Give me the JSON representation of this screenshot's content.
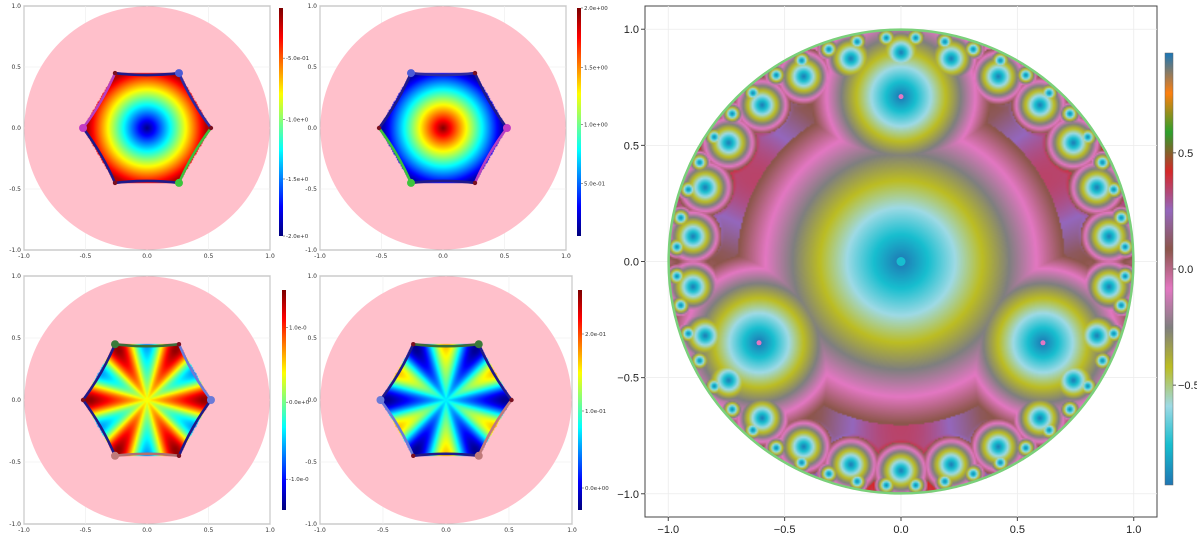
{
  "chart_data": [
    {
      "type": "heatmap",
      "id": "p1",
      "colormap": "jet",
      "xlim": [
        -1.0,
        1.0
      ],
      "ylim": [
        -1.0,
        1.0
      ],
      "x_ticks": [
        "-1.0",
        "-0.5",
        "0.0",
        "0.5",
        "1.0"
      ],
      "y_ticks": [
        "-1.0",
        "-0.5",
        "0.0",
        "0.5",
        "1.0"
      ],
      "disk_color": "#ffc0cb",
      "field": "radial_low",
      "colorbar_ticks": [
        {
          "label": "-5.0e-01",
          "pos": 0.78
        },
        {
          "label": "-1.0e+0",
          "pos": 0.51
        },
        {
          "label": "-1.5e+0",
          "pos": 0.25
        },
        {
          "label": "-2.0e+0",
          "pos": 0.0
        }
      ],
      "hexagon_vertices": [
        [
          0.52,
          0.0
        ],
        [
          0.26,
          0.45
        ],
        [
          -0.26,
          0.45
        ],
        [
          -0.52,
          0.0
        ],
        [
          -0.26,
          -0.45
        ],
        [
          0.26,
          -0.45
        ]
      ],
      "edge_colors": [
        "#2e2aa0",
        "#1f1a8a",
        "#b83fc0",
        "#1f1a8a",
        "#1f1a8a",
        "#3cbf3c"
      ],
      "markers": [
        {
          "x": 0.26,
          "y": 0.45,
          "color": "#4b5bd6"
        },
        {
          "x": -0.52,
          "y": 0.0,
          "color": "#c43cc4"
        },
        {
          "x": 0.26,
          "y": -0.45,
          "color": "#3cc43c"
        }
      ]
    },
    {
      "type": "heatmap",
      "id": "p2",
      "colormap": "jet",
      "xlim": [
        -1.0,
        1.0
      ],
      "ylim": [
        -1.0,
        1.0
      ],
      "x_ticks": [
        "-1.0",
        "-0.5",
        "0.0",
        "0.5",
        "1.0"
      ],
      "y_ticks": [
        "-1.0",
        "-0.5",
        "0.0",
        "0.5",
        "1.0"
      ],
      "disk_color": "#ffc0cb",
      "field": "radial_high",
      "colorbar_ticks": [
        {
          "label": "2.0e+00",
          "pos": 1.0
        },
        {
          "label": "1.5e+00",
          "pos": 0.74
        },
        {
          "label": "1.0e+00",
          "pos": 0.49
        },
        {
          "label": "5.0e-01",
          "pos": 0.23
        }
      ],
      "hexagon_vertices": [
        [
          0.52,
          0.0
        ],
        [
          0.26,
          0.45
        ],
        [
          -0.26,
          0.45
        ],
        [
          -0.52,
          0.0
        ],
        [
          -0.26,
          -0.45
        ],
        [
          0.26,
          -0.45
        ]
      ],
      "edge_colors": [
        "#1f1a8a",
        "#2e2aa0",
        "#1f1a8a",
        "#3cbf3c",
        "#1f1a8a",
        "#b83fc0"
      ],
      "markers": [
        {
          "x": -0.26,
          "y": 0.45,
          "color": "#4b5bd6"
        },
        {
          "x": 0.52,
          "y": 0.0,
          "color": "#c43cc4"
        },
        {
          "x": -0.26,
          "y": -0.45,
          "color": "#3cc43c"
        }
      ]
    },
    {
      "type": "heatmap",
      "id": "p3",
      "colormap": "jet",
      "xlim": [
        -1.0,
        1.0
      ],
      "ylim": [
        -1.0,
        1.0
      ],
      "x_ticks": [
        "-1.0",
        "-0.5",
        "0.0",
        "0.5",
        "1.0"
      ],
      "y_ticks": [
        "-1.0",
        "-0.5",
        "0.0",
        "0.5",
        "1.0"
      ],
      "disk_color": "#ffc0cb",
      "field": "star",
      "colorbar_ticks": [
        {
          "label": "1.0e-0",
          "pos": 0.83
        },
        {
          "label": "0.0e+0",
          "pos": 0.49
        },
        {
          "label": "-1.0e-0",
          "pos": 0.14
        }
      ],
      "hexagon_vertices": [
        [
          0.52,
          0.0
        ],
        [
          0.26,
          0.45
        ],
        [
          -0.26,
          0.45
        ],
        [
          -0.52,
          0.0
        ],
        [
          -0.26,
          -0.45
        ],
        [
          0.26,
          -0.45
        ]
      ],
      "edge_colors": [
        "#6a7ad8",
        "#3a6e3a",
        "#1f1a8a",
        "#1f1a8a",
        "#b07070",
        "#1f1a8a"
      ],
      "markers": [
        {
          "x": -0.26,
          "y": 0.45,
          "color": "#3a7a3a"
        },
        {
          "x": 0.52,
          "y": 0.0,
          "color": "#6a7ad8"
        },
        {
          "x": -0.26,
          "y": -0.45,
          "color": "#c07a7a"
        }
      ]
    },
    {
      "type": "heatmap",
      "id": "p4",
      "colormap": "jet",
      "xlim": [
        -1.0,
        1.0
      ],
      "ylim": [
        -1.0,
        1.0
      ],
      "x_ticks": [
        "-1.0",
        "-0.5",
        "0.0",
        "0.5",
        "1.0"
      ],
      "y_ticks": [
        "-1.0",
        "-0.5",
        "0.0",
        "0.5",
        "1.0"
      ],
      "disk_color": "#ffc0cb",
      "field": "star_mid",
      "colorbar_ticks": [
        {
          "label": "2.0e-01",
          "pos": 0.8
        },
        {
          "label": "1.0e-01",
          "pos": 0.45
        },
        {
          "label": "0.0e+00",
          "pos": 0.1
        }
      ],
      "hexagon_vertices": [
        [
          0.52,
          0.0
        ],
        [
          0.26,
          0.45
        ],
        [
          -0.26,
          0.45
        ],
        [
          -0.52,
          0.0
        ],
        [
          -0.26,
          -0.45
        ],
        [
          0.26,
          -0.45
        ]
      ],
      "edge_colors": [
        "#1f1a8a",
        "#3a6e3a",
        "#1f1a8a",
        "#6a7ad8",
        "#1f1a8a",
        "#c07a7a"
      ],
      "markers": [
        {
          "x": 0.26,
          "y": 0.45,
          "color": "#3a7a3a"
        },
        {
          "x": -0.52,
          "y": 0.0,
          "color": "#6a7ad8"
        },
        {
          "x": 0.26,
          "y": -0.45,
          "color": "#c07a7a"
        }
      ]
    },
    {
      "type": "heatmap",
      "id": "big",
      "colormap": "tab10-banded",
      "xlim": [
        -1.1,
        1.1
      ],
      "ylim": [
        -1.1,
        1.1
      ],
      "x_ticks": [
        "−1.0",
        "−0.5",
        "0.0",
        "0.5",
        "1.0"
      ],
      "y_ticks": [
        "−1.0",
        "−0.5",
        "0.0",
        "0.5",
        "1.0"
      ],
      "disk_border_color": "#7ad07a",
      "colorbar_ticks": [
        {
          "label": "0.5",
          "value": 0.5
        },
        {
          "label": "0.0",
          "value": 0.0
        },
        {
          "label": "−0.5",
          "value": -0.5
        }
      ],
      "colorbar_range": [
        -0.93,
        0.93
      ],
      "centers": [
        {
          "x": 0.0,
          "y": 0.0,
          "color": "#17becf"
        },
        {
          "x": 0.0,
          "y": 0.71,
          "color": "#e377c2"
        },
        {
          "x": -0.61,
          "y": -0.35,
          "color": "#e377c2"
        },
        {
          "x": 0.61,
          "y": -0.35,
          "color": "#e377c2"
        }
      ]
    }
  ]
}
